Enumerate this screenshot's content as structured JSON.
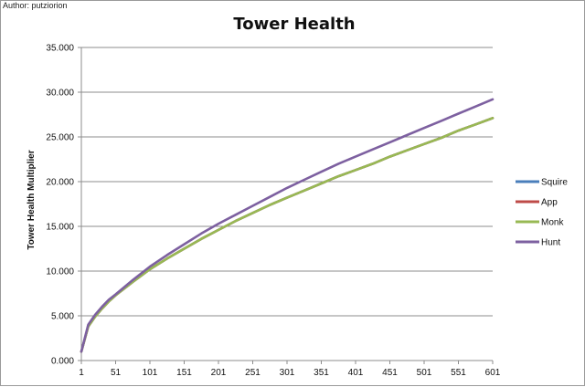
{
  "author": "Author: putziorion",
  "chart_data": {
    "type": "line",
    "title": "Tower Health",
    "xlabel": "",
    "ylabel": "Tower Health Multiplier",
    "xlim": [
      1,
      601
    ],
    "ylim": [
      0,
      35
    ],
    "x_ticks": [
      "1",
      "51",
      "101",
      "151",
      "201",
      "251",
      "301",
      "351",
      "401",
      "451",
      "501",
      "551",
      "601"
    ],
    "y_ticks": [
      "0.000",
      "5.000",
      "10.000",
      "15.000",
      "20.000",
      "25.000",
      "30.000",
      "35.000"
    ],
    "grid": "horizontal",
    "legend_position": "right",
    "x": [
      1,
      11,
      21,
      31,
      41,
      51,
      76,
      101,
      126,
      151,
      176,
      201,
      226,
      251,
      276,
      301,
      326,
      351,
      376,
      401,
      426,
      451,
      476,
      501,
      526,
      551,
      576,
      601
    ],
    "series": [
      {
        "name": "Squire",
        "color": "#4a7ebb",
        "values": [
          1.0,
          3.8,
          4.9,
          5.8,
          6.6,
          7.3,
          8.8,
          10.2,
          11.4,
          12.5,
          13.6,
          14.6,
          15.6,
          16.5,
          17.4,
          18.2,
          19.0,
          19.8,
          20.6,
          21.3,
          22.0,
          22.8,
          23.5,
          24.2,
          24.9,
          25.7,
          26.4,
          27.1
        ]
      },
      {
        "name": "App",
        "color": "#be4b48",
        "values": [
          1.0,
          3.8,
          4.9,
          5.8,
          6.6,
          7.3,
          8.8,
          10.2,
          11.4,
          12.5,
          13.6,
          14.6,
          15.6,
          16.5,
          17.4,
          18.2,
          19.0,
          19.8,
          20.6,
          21.3,
          22.0,
          22.8,
          23.5,
          24.2,
          24.9,
          25.7,
          26.4,
          27.1
        ]
      },
      {
        "name": "Monk",
        "color": "#98b954",
        "values": [
          1.0,
          3.8,
          4.9,
          5.8,
          6.6,
          7.3,
          8.8,
          10.2,
          11.4,
          12.5,
          13.6,
          14.6,
          15.6,
          16.5,
          17.4,
          18.2,
          19.0,
          19.8,
          20.6,
          21.3,
          22.0,
          22.8,
          23.5,
          24.2,
          24.9,
          25.7,
          26.4,
          27.1
        ]
      },
      {
        "name": "Hunt",
        "color": "#7d60a0",
        "values": [
          1.0,
          4.0,
          5.1,
          6.0,
          6.8,
          7.4,
          9.0,
          10.5,
          11.8,
          13.0,
          14.2,
          15.3,
          16.3,
          17.3,
          18.3,
          19.3,
          20.2,
          21.1,
          22.0,
          22.8,
          23.6,
          24.4,
          25.2,
          26.0,
          26.8,
          27.6,
          28.4,
          29.2
        ]
      }
    ]
  }
}
